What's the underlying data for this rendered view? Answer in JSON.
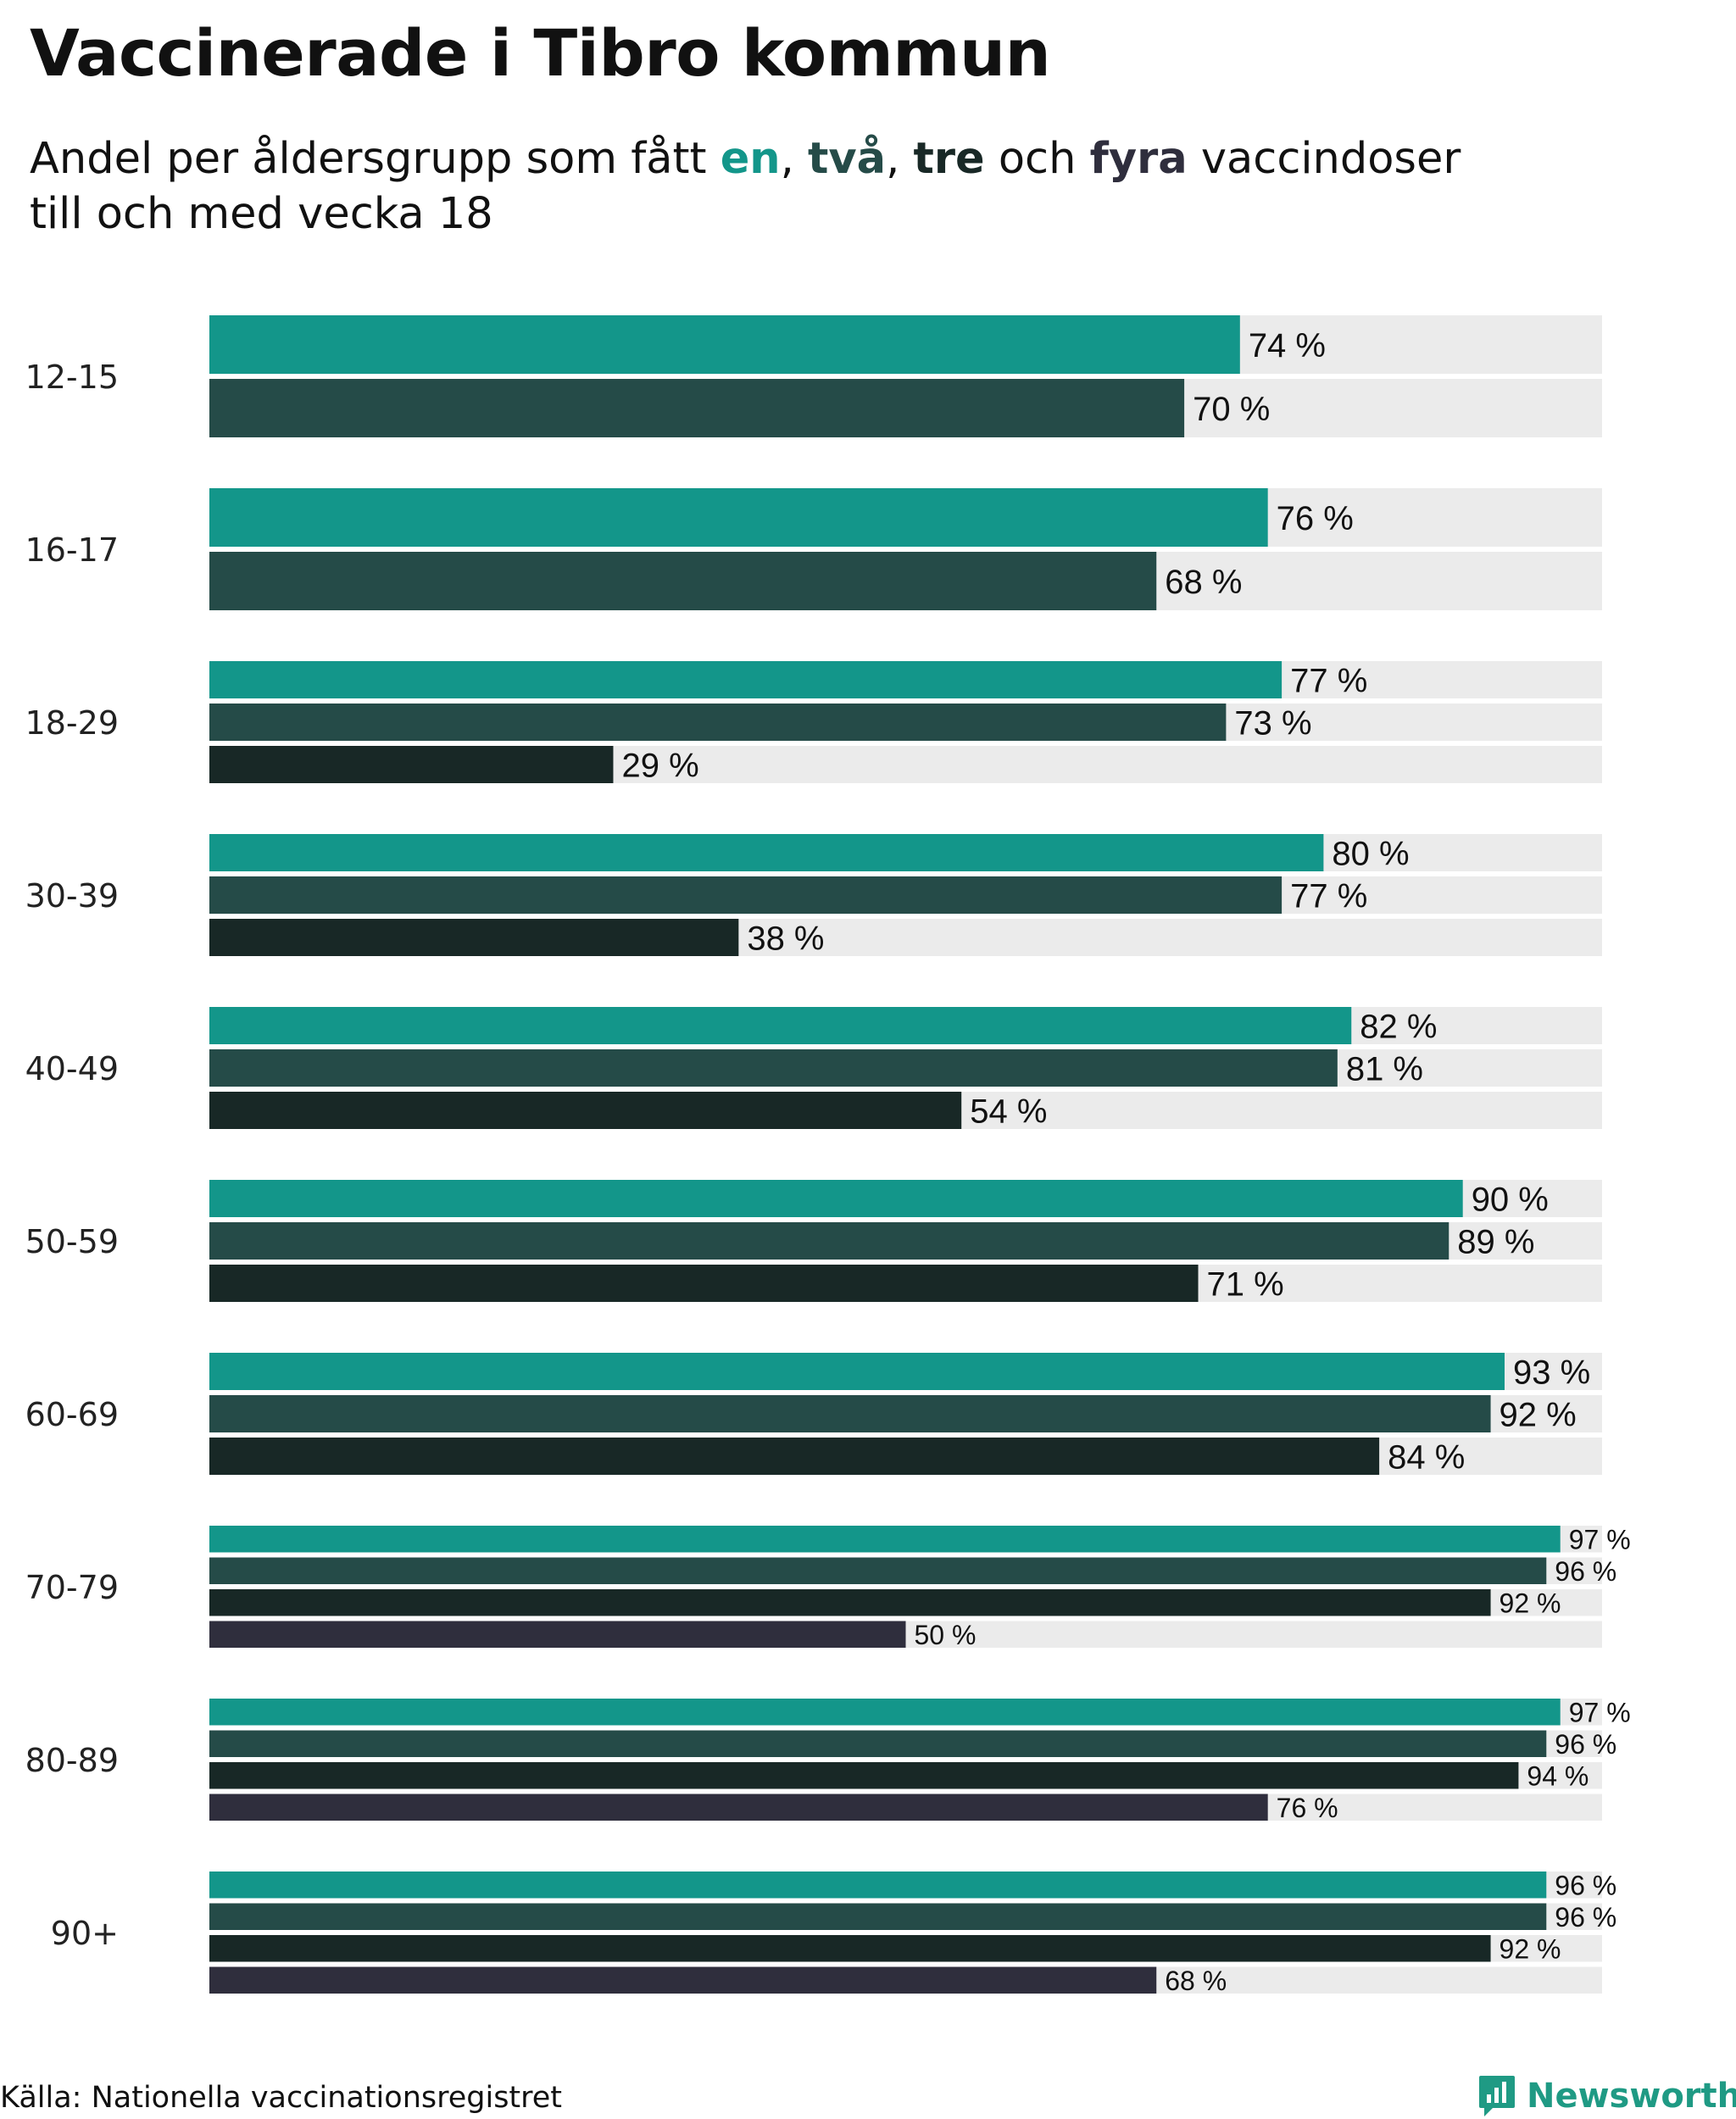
{
  "title": "Vaccinerade i Tibro kommun",
  "subtitle": {
    "prefix": "Andel per åldersgrupp som fått ",
    "dose1": "en",
    "sep1": ", ",
    "dose2": "två",
    "sep2": ", ",
    "dose3": "tre",
    "sep3": " och ",
    "dose4": "fyra",
    "suffix": " vaccindoser",
    "line2": "till och med vecka 18"
  },
  "source": "Källa: Nationella vaccinationsregistret",
  "brand": "Newsworthy",
  "colors": {
    "dose1": "#13968a",
    "dose2": "#254b48",
    "dose3": "#182826",
    "dose4": "#2f2e3d",
    "track": "#ebebeb",
    "brand": "#1f9a84"
  },
  "chart_data": {
    "type": "bar",
    "orientation": "horizontal",
    "title": "Vaccinerade i Tibro kommun",
    "xlim": [
      0,
      100
    ],
    "value_suffix": " %",
    "categories": [
      "12-15",
      "16-17",
      "18-29",
      "30-39",
      "40-49",
      "50-59",
      "60-69",
      "70-79",
      "80-89",
      "90+"
    ],
    "series": [
      {
        "name": "en",
        "values": [
          74,
          76,
          77,
          80,
          82,
          90,
          93,
          97,
          97,
          96
        ]
      },
      {
        "name": "två",
        "values": [
          70,
          68,
          73,
          77,
          81,
          89,
          92,
          96,
          96,
          96
        ]
      },
      {
        "name": "tre",
        "values": [
          null,
          null,
          29,
          38,
          54,
          71,
          84,
          92,
          94,
          92
        ]
      },
      {
        "name": "fyra",
        "values": [
          null,
          null,
          null,
          null,
          null,
          null,
          null,
          50,
          76,
          68
        ]
      }
    ]
  }
}
